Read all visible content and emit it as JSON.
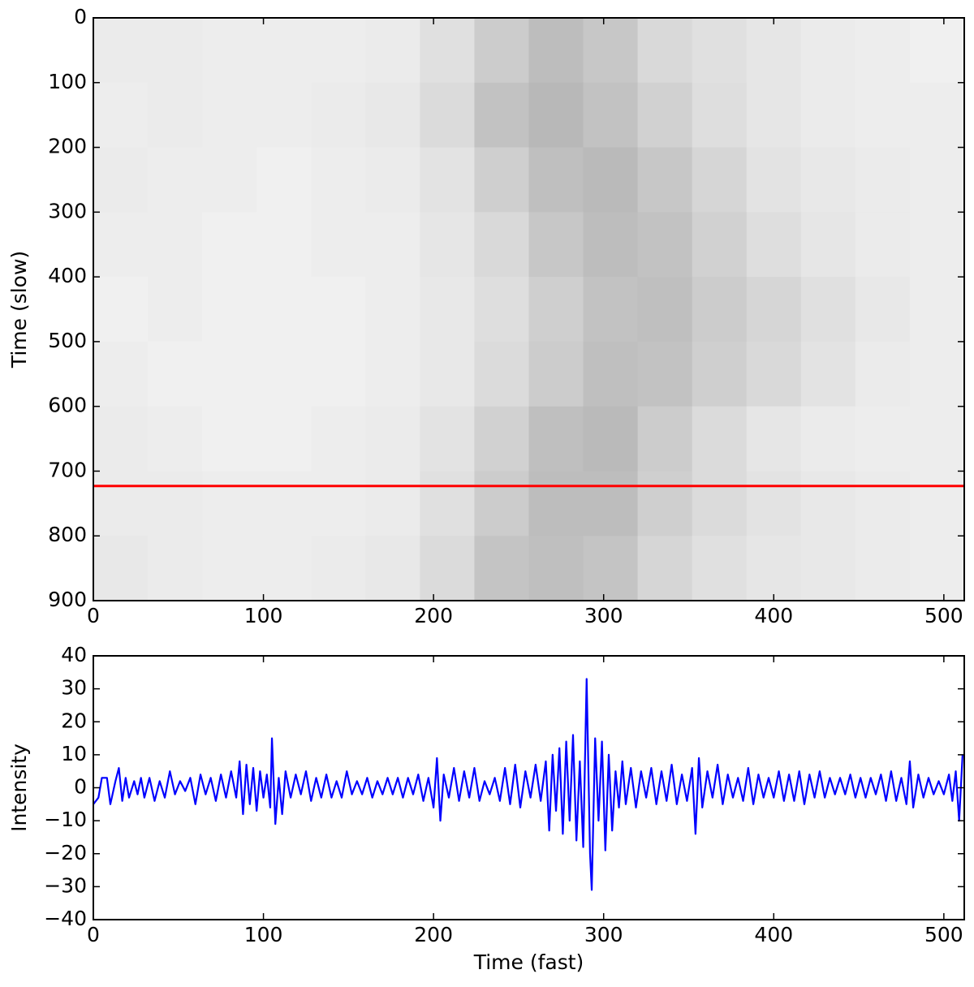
{
  "chart_data": [
    {
      "type": "heatmap",
      "ylabel": "Time (slow)",
      "colormap": "gray_r",
      "xlim": [
        0,
        512
      ],
      "ylim": [
        900,
        0
      ],
      "xticks": [
        0,
        100,
        200,
        300,
        400,
        500
      ],
      "yticks": [
        0,
        100,
        200,
        300,
        400,
        500,
        600,
        700,
        800,
        900
      ],
      "z_x_edges": [
        0,
        32,
        64,
        96,
        128,
        160,
        192,
        224,
        256,
        288,
        320,
        352,
        384,
        416,
        448,
        480,
        512
      ],
      "z_y_edges": [
        0,
        100,
        200,
        300,
        400,
        500,
        600,
        700,
        800,
        900
      ],
      "z": [
        [
          0.08,
          0.08,
          0.07,
          0.07,
          0.07,
          0.08,
          0.12,
          0.2,
          0.26,
          0.22,
          0.15,
          0.12,
          0.1,
          0.08,
          0.07,
          0.06
        ],
        [
          0.07,
          0.08,
          0.07,
          0.07,
          0.08,
          0.09,
          0.14,
          0.24,
          0.28,
          0.24,
          0.18,
          0.13,
          0.1,
          0.08,
          0.07,
          0.07
        ],
        [
          0.08,
          0.07,
          0.07,
          0.06,
          0.07,
          0.08,
          0.11,
          0.19,
          0.25,
          0.27,
          0.22,
          0.16,
          0.11,
          0.09,
          0.08,
          0.07
        ],
        [
          0.07,
          0.07,
          0.06,
          0.06,
          0.07,
          0.07,
          0.1,
          0.15,
          0.22,
          0.26,
          0.24,
          0.18,
          0.13,
          0.1,
          0.08,
          0.07
        ],
        [
          0.06,
          0.07,
          0.06,
          0.06,
          0.06,
          0.07,
          0.09,
          0.13,
          0.19,
          0.24,
          0.25,
          0.2,
          0.16,
          0.12,
          0.09,
          0.07
        ],
        [
          0.07,
          0.06,
          0.06,
          0.06,
          0.06,
          0.07,
          0.09,
          0.14,
          0.2,
          0.25,
          0.24,
          0.19,
          0.15,
          0.11,
          0.08,
          0.07
        ],
        [
          0.08,
          0.07,
          0.06,
          0.06,
          0.07,
          0.08,
          0.11,
          0.18,
          0.25,
          0.27,
          0.2,
          0.14,
          0.1,
          0.08,
          0.07,
          0.07
        ],
        [
          0.08,
          0.08,
          0.07,
          0.07,
          0.07,
          0.08,
          0.12,
          0.2,
          0.26,
          0.26,
          0.19,
          0.14,
          0.11,
          0.09,
          0.08,
          0.07
        ],
        [
          0.09,
          0.08,
          0.07,
          0.07,
          0.08,
          0.09,
          0.14,
          0.23,
          0.25,
          0.23,
          0.16,
          0.12,
          0.1,
          0.09,
          0.08,
          0.07
        ]
      ],
      "hline": {
        "value": 723,
        "color": "#ff0000"
      }
    },
    {
      "type": "line",
      "xlabel": "Time (fast)",
      "ylabel": "Intensity",
      "color": "#0000ff",
      "xlim": [
        0,
        512
      ],
      "ylim": [
        -40,
        40
      ],
      "xticks": [
        0,
        100,
        200,
        300,
        400,
        500
      ],
      "yticks": [
        {
          "value": -40,
          "label": "−40"
        },
        {
          "value": -30,
          "label": "−30"
        },
        {
          "value": -20,
          "label": "−20"
        },
        {
          "value": -10,
          "label": "−10"
        },
        0,
        10,
        20,
        30,
        40
      ],
      "x": [
        0,
        3,
        5,
        8,
        10,
        13,
        15,
        17,
        19,
        21,
        24,
        26,
        28,
        30,
        33,
        36,
        39,
        42,
        45,
        48,
        51,
        54,
        57,
        60,
        63,
        66,
        69,
        72,
        75,
        78,
        81,
        84,
        86,
        88,
        90,
        92,
        94,
        96,
        98,
        100,
        102,
        104,
        105,
        107,
        109,
        111,
        113,
        116,
        119,
        122,
        125,
        128,
        131,
        134,
        137,
        140,
        143,
        146,
        149,
        152,
        155,
        158,
        161,
        164,
        167,
        170,
        173,
        176,
        179,
        182,
        185,
        188,
        191,
        194,
        197,
        200,
        202,
        204,
        206,
        209,
        212,
        215,
        218,
        221,
        224,
        227,
        230,
        233,
        236,
        239,
        242,
        245,
        248,
        251,
        254,
        257,
        260,
        263,
        266,
        268,
        270,
        272,
        274,
        276,
        278,
        280,
        282,
        284,
        286,
        288,
        290,
        292,
        293,
        295,
        297,
        299,
        301,
        303,
        305,
        307,
        309,
        311,
        313,
        316,
        319,
        322,
        325,
        328,
        331,
        334,
        337,
        340,
        343,
        346,
        349,
        352,
        354,
        356,
        358,
        361,
        364,
        367,
        370,
        373,
        376,
        379,
        382,
        385,
        388,
        391,
        394,
        397,
        400,
        403,
        406,
        409,
        412,
        415,
        418,
        421,
        424,
        427,
        430,
        433,
        436,
        439,
        442,
        445,
        448,
        451,
        454,
        457,
        460,
        463,
        466,
        469,
        472,
        475,
        478,
        480,
        482,
        485,
        488,
        491,
        494,
        497,
        500,
        503,
        505,
        507,
        509,
        511
      ],
      "values": [
        -5,
        -3,
        3,
        3,
        -5,
        2,
        6,
        -4,
        3,
        -3,
        2,
        -2,
        3,
        -3,
        3,
        -4,
        2,
        -3,
        5,
        -2,
        2,
        -1,
        3,
        -5,
        4,
        -2,
        3,
        -4,
        4,
        -3,
        5,
        -3,
        8,
        -8,
        7,
        -5,
        6,
        -7,
        5,
        -3,
        4,
        -6,
        15,
        -11,
        3,
        -8,
        5,
        -3,
        4,
        -2,
        5,
        -4,
        3,
        -3,
        4,
        -3,
        2,
        -3,
        5,
        -2,
        2,
        -2,
        3,
        -3,
        2,
        -2,
        3,
        -2,
        3,
        -3,
        3,
        -2,
        4,
        -4,
        3,
        -6,
        9,
        -10,
        4,
        -3,
        6,
        -4,
        5,
        -3,
        6,
        -4,
        2,
        -2,
        3,
        -4,
        6,
        -5,
        7,
        -6,
        5,
        -3,
        7,
        -4,
        8,
        -13,
        10,
        -7,
        12,
        -14,
        14,
        -10,
        16,
        -16,
        8,
        -18,
        33,
        -20,
        -31,
        15,
        -10,
        14,
        -19,
        10,
        -13,
        5,
        -6,
        8,
        -5,
        6,
        -6,
        5,
        -3,
        6,
        -5,
        5,
        -4,
        7,
        -5,
        4,
        -4,
        6,
        -14,
        9,
        -6,
        5,
        -3,
        7,
        -5,
        4,
        -3,
        3,
        -4,
        6,
        -5,
        4,
        -3,
        3,
        -3,
        5,
        -4,
        4,
        -4,
        5,
        -5,
        4,
        -3,
        5,
        -3,
        3,
        -2,
        3,
        -2,
        4,
        -3,
        3,
        -3,
        3,
        -2,
        4,
        -4,
        5,
        -4,
        3,
        -5,
        8,
        -6,
        4,
        -3,
        3,
        -2,
        2,
        -2,
        4,
        -4,
        5,
        -10,
        10
      ]
    }
  ]
}
